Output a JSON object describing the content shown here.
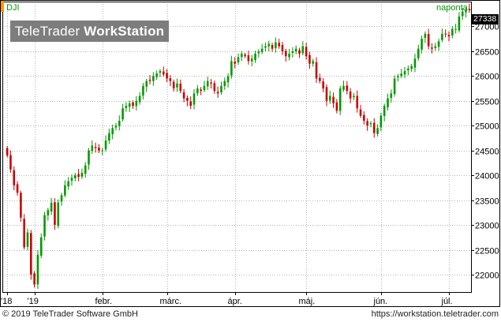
{
  "header": {
    "symbol": "DJI",
    "period": "naponta",
    "logo_prefix": "TeleTrader ",
    "logo_bold": "WorkStation",
    "last_price": "27338"
  },
  "footer": {
    "copyright": "© 2019 TeleTrader Software GmbH",
    "url": "https://workstation.teletrader.com"
  },
  "colors": {
    "up": "#009a00",
    "down": "#cc0000",
    "grid": "#b4b4b4",
    "axis": "#000000"
  },
  "chart_data": {
    "type": "candlestick",
    "ylim": [
      21650,
      27500
    ],
    "y_ticks": [
      22000,
      22500,
      23000,
      23500,
      24000,
      24500,
      25000,
      25500,
      26000,
      26500,
      27000
    ],
    "x_tick_labels": [
      {
        "label": "'18",
        "index": 0
      },
      {
        "label": "'19",
        "index": 8
      },
      {
        "label": "febr.",
        "index": 28
      },
      {
        "label": "márc.",
        "index": 47
      },
      {
        "label": "ápr.",
        "index": 67
      },
      {
        "label": "máj.",
        "index": 88
      },
      {
        "label": "jún.",
        "index": 110
      },
      {
        "label": "júl.",
        "index": 130
      }
    ],
    "grid": true,
    "closes": [
      24400,
      24120,
      23800,
      23650,
      23150,
      22550,
      22850,
      22000,
      21800,
      22400,
      22750,
      23200,
      23300,
      23450,
      23000,
      23450,
      23600,
      23800,
      23880,
      23950,
      24000,
      23970,
      24050,
      24200,
      24500,
      24600,
      24550,
      24500,
      24500,
      24700,
      24850,
      24950,
      25000,
      25100,
      25350,
      25400,
      25450,
      25400,
      25500,
      25600,
      25800,
      25900,
      25900,
      26000,
      26050,
      26100,
      26030,
      25950,
      25900,
      25750,
      25850,
      25700,
      25550,
      25500,
      25400,
      25650,
      25750,
      25700,
      25800,
      25900,
      25850,
      25700,
      25650,
      25800,
      25900,
      26000,
      26300,
      26250,
      26380,
      26450,
      26400,
      26300,
      26350,
      26450,
      26500,
      26550,
      26600,
      26650,
      26550,
      26680,
      26600,
      26500,
      26400,
      26450,
      26500,
      26550,
      26450,
      26600,
      26400,
      26250,
      26300,
      25950,
      25900,
      25750,
      25500,
      25600,
      25450,
      25300,
      25750,
      25800,
      25700,
      25550,
      25600,
      25350,
      25200,
      25100,
      25000,
      25050,
      24850,
      24950,
      25200,
      25400,
      25550,
      25650,
      25950,
      26000,
      26050,
      26100,
      26150,
      26200,
      26350,
      26550,
      26750,
      26850,
      26600,
      26550,
      26600,
      26700,
      26850,
      26850,
      26800,
      26950,
      26950,
      27200,
      27300,
      27330,
      27338
    ]
  }
}
